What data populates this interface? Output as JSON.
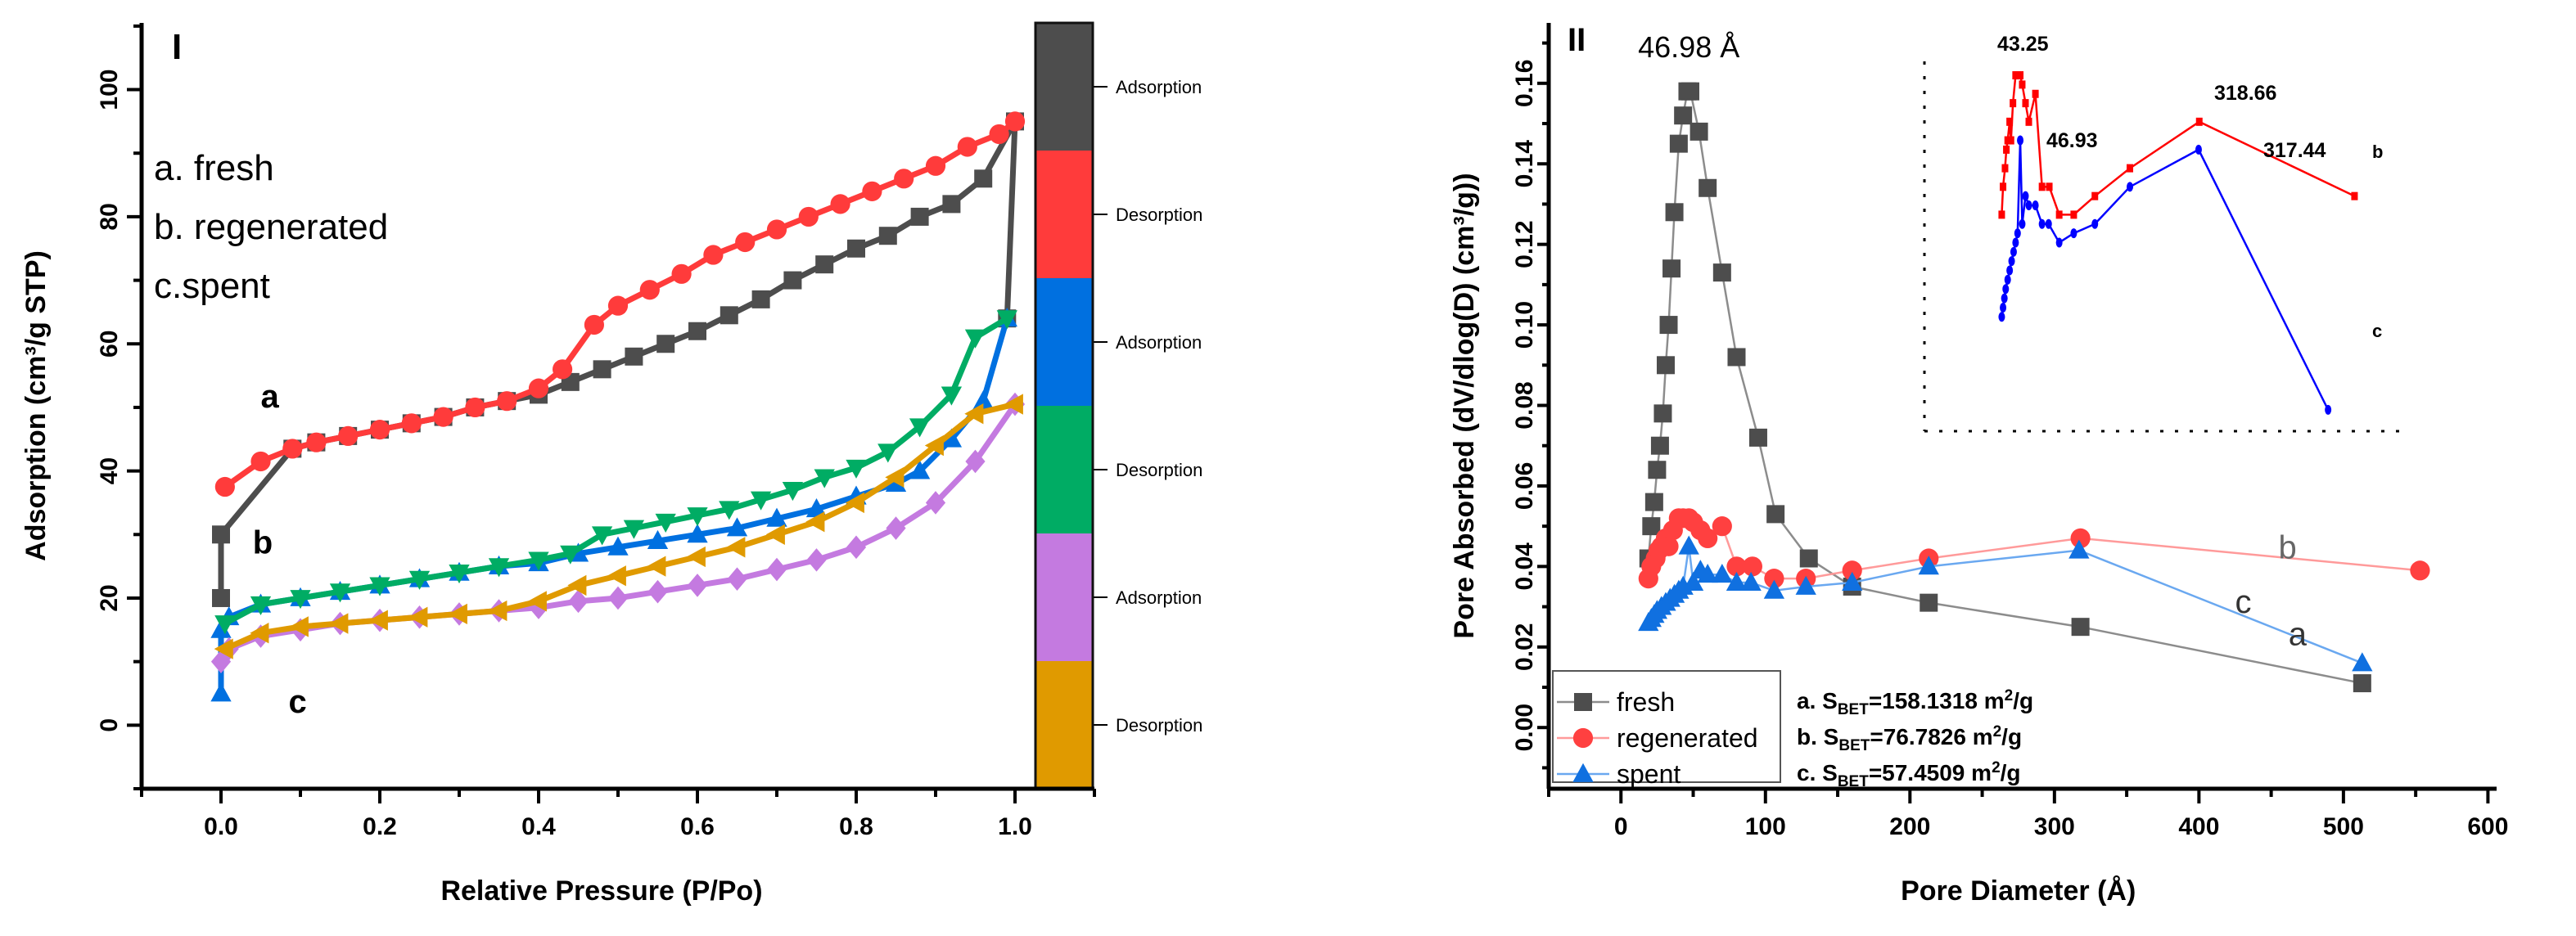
{
  "chart_data": [
    {
      "type": "line",
      "panel_label": "I",
      "title": "",
      "xlabel": "Relative Pressure (P/Po)",
      "ylabel": "Adsorption (cm³/g STP)",
      "xlim": [
        -0.1,
        1.1
      ],
      "ylim": [
        -10,
        110.5
      ],
      "xticks": [
        0.0,
        0.2,
        0.4,
        0.6,
        0.8,
        1.0
      ],
      "xtick_labels": [
        "0.0",
        "0.2",
        "0.4",
        "0.6",
        "0.8",
        "1.0"
      ],
      "yticks": [
        0,
        20,
        40,
        60,
        80,
        100
      ],
      "ytick_labels": [
        "0",
        "20",
        "40",
        "60",
        "80",
        "100"
      ],
      "legend_text": [
        "a. fresh",
        "b. regenerated",
        "c.spent"
      ],
      "curve_labels": [
        "a",
        "b",
        "c"
      ],
      "colorbar": [
        {
          "label": "Adsorption",
          "color": "#4d4d4d"
        },
        {
          "label": "Desorption",
          "color": "#ff3b3b"
        },
        {
          "label": "Adsorption",
          "color": "#0070e0"
        },
        {
          "label": "Desorption",
          "color": "#00ac64"
        },
        {
          "label": "Adsorption",
          "color": "#c47ae0"
        },
        {
          "label": "Desorption",
          "color": "#e09a00"
        }
      ],
      "series": [
        {
          "name": "a. fresh - adsorption",
          "color": "#4d4d4d",
          "marker": "square",
          "points": [
            [
              0,
              20
            ],
            [
              0,
              30
            ],
            [
              0.09,
              43.5
            ],
            [
              0.12,
              44.5
            ],
            [
              0.16,
              45.5
            ],
            [
              0.2,
              46.5
            ],
            [
              0.24,
              47.5
            ],
            [
              0.28,
              48.5
            ],
            [
              0.32,
              50
            ],
            [
              0.36,
              51
            ],
            [
              0.4,
              52
            ],
            [
              0.44,
              54
            ],
            [
              0.48,
              56
            ],
            [
              0.52,
              58
            ],
            [
              0.56,
              60
            ],
            [
              0.6,
              62
            ],
            [
              0.64,
              64.5
            ],
            [
              0.68,
              67
            ],
            [
              0.72,
              70
            ],
            [
              0.76,
              72.5
            ],
            [
              0.8,
              75
            ],
            [
              0.84,
              77
            ],
            [
              0.88,
              80
            ],
            [
              0.92,
              82
            ],
            [
              0.96,
              86
            ],
            [
              1.0,
              95
            ],
            [
              0.99,
              64
            ]
          ]
        },
        {
          "name": "a. fresh - desorption",
          "color": "#ff3b3b",
          "marker": "circle",
          "points": [
            [
              0.005,
              37.5
            ],
            [
              0.05,
              41.5
            ],
            [
              0.09,
              43.5
            ],
            [
              0.12,
              44.5
            ],
            [
              0.16,
              45.5
            ],
            [
              0.2,
              46.5
            ],
            [
              0.24,
              47.5
            ],
            [
              0.28,
              48.5
            ],
            [
              0.32,
              50
            ],
            [
              0.36,
              51
            ],
            [
              0.4,
              53
            ],
            [
              0.43,
              56
            ],
            [
              0.47,
              63
            ],
            [
              0.5,
              66
            ],
            [
              0.54,
              68.5
            ],
            [
              0.58,
              71
            ],
            [
              0.62,
              74
            ],
            [
              0.66,
              76
            ],
            [
              0.7,
              78
            ],
            [
              0.74,
              80
            ],
            [
              0.78,
              82
            ],
            [
              0.82,
              84
            ],
            [
              0.86,
              86
            ],
            [
              0.9,
              88
            ],
            [
              0.94,
              91
            ],
            [
              0.98,
              93
            ],
            [
              1.0,
              95
            ]
          ]
        },
        {
          "name": "b. regenerated - adsorption",
          "color": "#0070e0",
          "marker": "triangle-up",
          "points": [
            [
              0,
              5
            ],
            [
              0,
              15
            ],
            [
              0.01,
              17
            ],
            [
              0.05,
              19
            ],
            [
              0.1,
              20
            ],
            [
              0.15,
              21
            ],
            [
              0.2,
              22
            ],
            [
              0.25,
              23
            ],
            [
              0.3,
              24
            ],
            [
              0.35,
              25
            ],
            [
              0.4,
              25.5
            ],
            [
              0.45,
              27
            ],
            [
              0.5,
              28
            ],
            [
              0.55,
              29
            ],
            [
              0.6,
              30
            ],
            [
              0.65,
              31
            ],
            [
              0.7,
              32.5
            ],
            [
              0.75,
              34
            ],
            [
              0.8,
              36
            ],
            [
              0.85,
              38
            ],
            [
              0.88,
              40
            ],
            [
              0.92,
              45
            ],
            [
              0.96,
              51
            ],
            [
              0.99,
              64
            ]
          ]
        },
        {
          "name": "b. regenerated - desorption",
          "color": "#00ac64",
          "marker": "triangle-down",
          "points": [
            [
              0.005,
              16
            ],
            [
              0.05,
              19
            ],
            [
              0.1,
              20
            ],
            [
              0.15,
              21
            ],
            [
              0.2,
              22
            ],
            [
              0.25,
              23
            ],
            [
              0.3,
              24
            ],
            [
              0.35,
              25
            ],
            [
              0.4,
              26
            ],
            [
              0.44,
              27
            ],
            [
              0.48,
              30
            ],
            [
              0.52,
              31
            ],
            [
              0.56,
              32
            ],
            [
              0.6,
              33
            ],
            [
              0.64,
              34
            ],
            [
              0.68,
              35.5
            ],
            [
              0.72,
              37
            ],
            [
              0.76,
              39
            ],
            [
              0.8,
              40.5
            ],
            [
              0.84,
              43
            ],
            [
              0.88,
              47
            ],
            [
              0.92,
              52
            ],
            [
              0.95,
              61
            ],
            [
              0.99,
              64
            ]
          ]
        },
        {
          "name": "c. spent - adsorption",
          "color": "#c47ae0",
          "marker": "diamond",
          "points": [
            [
              0,
              10
            ],
            [
              0.01,
              12
            ],
            [
              0.05,
              14
            ],
            [
              0.1,
              15
            ],
            [
              0.15,
              16
            ],
            [
              0.2,
              16.5
            ],
            [
              0.25,
              17
            ],
            [
              0.3,
              17.5
            ],
            [
              0.35,
              18
            ],
            [
              0.4,
              18.5
            ],
            [
              0.45,
              19.5
            ],
            [
              0.5,
              20
            ],
            [
              0.55,
              21
            ],
            [
              0.6,
              22
            ],
            [
              0.65,
              23
            ],
            [
              0.7,
              24.5
            ],
            [
              0.75,
              26
            ],
            [
              0.8,
              28
            ],
            [
              0.85,
              31
            ],
            [
              0.9,
              35
            ],
            [
              0.95,
              41.5
            ],
            [
              1.0,
              50.5
            ]
          ]
        },
        {
          "name": "c. spent - desorption",
          "color": "#e09a00",
          "marker": "triangle-left",
          "points": [
            [
              0.005,
              12
            ],
            [
              0.05,
              14.5
            ],
            [
              0.1,
              15.5
            ],
            [
              0.15,
              16
            ],
            [
              0.2,
              16.5
            ],
            [
              0.25,
              17
            ],
            [
              0.3,
              17.5
            ],
            [
              0.35,
              18
            ],
            [
              0.4,
              19.5
            ],
            [
              0.45,
              22
            ],
            [
              0.5,
              23.5
            ],
            [
              0.55,
              25
            ],
            [
              0.6,
              26.5
            ],
            [
              0.65,
              28
            ],
            [
              0.7,
              30
            ],
            [
              0.75,
              32
            ],
            [
              0.8,
              35
            ],
            [
              0.85,
              39
            ],
            [
              0.9,
              44
            ],
            [
              0.95,
              49
            ],
            [
              1.0,
              50.5
            ]
          ]
        }
      ]
    },
    {
      "type": "line",
      "panel_label": "II",
      "title": "",
      "xlabel": "Pore Diameter (Å)",
      "ylabel": "Pore Absorbed (dV/dlog(D) (cm³/g))",
      "xlim": [
        -50,
        606
      ],
      "ylim": [
        -0.0152,
        0.175
      ],
      "xticks": [
        0,
        100,
        200,
        300,
        400,
        500,
        600
      ],
      "xtick_labels": [
        "0",
        "100",
        "200",
        "300",
        "400",
        "500",
        "600"
      ],
      "yticks": [
        0,
        0.02,
        0.04,
        0.06,
        0.08,
        0.1,
        0.12,
        0.14,
        0.16
      ],
      "ytick_labels": [
        "0.00",
        "0.02",
        "0.04",
        "0.06",
        "0.08",
        "0.10",
        "0.12",
        "0.14",
        "0.16"
      ],
      "peak_annotation": "46.98 Å",
      "curve_labels": [
        "a",
        "b",
        "c"
      ],
      "legend": [
        "fresh",
        "regenerated",
        "spent"
      ],
      "sbet": [
        {
          "prefix": "a. S",
          "sub": "BET",
          "value": "=158.1318 m",
          "sup": "2",
          "unit": "/g"
        },
        {
          "prefix": "b. S",
          "sub": "BET",
          "value": "=76.7826 m",
          "sup": "2",
          "unit": "/g"
        },
        {
          "prefix": "c. S",
          "sub": "BET",
          "value": "=57.4509 m",
          "sup": "2",
          "unit": "/g"
        }
      ],
      "series": [
        {
          "name": "fresh",
          "color": "#4d4d4d",
          "line_color": "#8c8c8c",
          "marker": "square",
          "points": [
            [
              19,
              0.042
            ],
            [
              21,
              0.05
            ],
            [
              23,
              0.056
            ],
            [
              25,
              0.064
            ],
            [
              27,
              0.07
            ],
            [
              29,
              0.078
            ],
            [
              31,
              0.09
            ],
            [
              33,
              0.1
            ],
            [
              35,
              0.114
            ],
            [
              37,
              0.128
            ],
            [
              40,
              0.145
            ],
            [
              43,
              0.152
            ],
            [
              46,
              0.158
            ],
            [
              48,
              0.158
            ],
            [
              54,
              0.148
            ],
            [
              60,
              0.134
            ],
            [
              70,
              0.113
            ],
            [
              80,
              0.092
            ],
            [
              95,
              0.072
            ],
            [
              107,
              0.053
            ],
            [
              130,
              0.042
            ],
            [
              160,
              0.035
            ],
            [
              213,
              0.031
            ],
            [
              318,
              0.025
            ],
            [
              513,
              0.011
            ]
          ]
        },
        {
          "name": "regenerated",
          "color": "#ff4040",
          "line_color": "#ff9a9a",
          "marker": "circle",
          "points": [
            [
              19,
              0.037
            ],
            [
              21,
              0.04
            ],
            [
              24,
              0.042
            ],
            [
              26,
              0.044
            ],
            [
              28,
              0.045
            ],
            [
              31,
              0.047
            ],
            [
              33,
              0.045
            ],
            [
              36,
              0.049
            ],
            [
              40,
              0.052
            ],
            [
              43,
              0.052
            ],
            [
              47,
              0.052
            ],
            [
              50,
              0.051
            ],
            [
              55,
              0.049
            ],
            [
              60,
              0.047
            ],
            [
              70,
              0.05
            ],
            [
              80,
              0.04
            ],
            [
              91,
              0.04
            ],
            [
              106,
              0.037
            ],
            [
              128,
              0.037
            ],
            [
              160,
              0.039
            ],
            [
              213,
              0.042
            ],
            [
              318,
              0.047
            ],
            [
              553,
              0.039
            ]
          ]
        },
        {
          "name": "spent",
          "color": "#1070e0",
          "line_color": "#6aa8f0",
          "marker": "triangle-up",
          "points": [
            [
              19,
              0.026
            ],
            [
              21,
              0.027
            ],
            [
              23,
              0.028
            ],
            [
              25,
              0.029
            ],
            [
              28,
              0.03
            ],
            [
              31,
              0.031
            ],
            [
              34,
              0.032
            ],
            [
              37,
              0.033
            ],
            [
              40,
              0.034
            ],
            [
              43,
              0.035
            ],
            [
              47,
              0.045
            ],
            [
              50,
              0.036
            ],
            [
              55,
              0.039
            ],
            [
              60,
              0.038
            ],
            [
              70,
              0.038
            ],
            [
              80,
              0.036
            ],
            [
              90,
              0.036
            ],
            [
              106,
              0.034
            ],
            [
              128,
              0.035
            ],
            [
              160,
              0.036
            ],
            [
              213,
              0.04
            ],
            [
              317,
              0.044
            ],
            [
              513,
              0.016
            ]
          ]
        }
      ],
      "inset": {
        "xlim": [
          -98,
          633
        ],
        "ylim": [
          0.0137,
          0.0535
        ],
        "annotations": [
          "43.25",
          "46.93",
          "318.66",
          "317.44"
        ],
        "curve_labels": [
          "b",
          "c"
        ],
        "series_colors": {
          "regenerated": "#ff0000",
          "spent": "#0000ff"
        }
      }
    }
  ]
}
